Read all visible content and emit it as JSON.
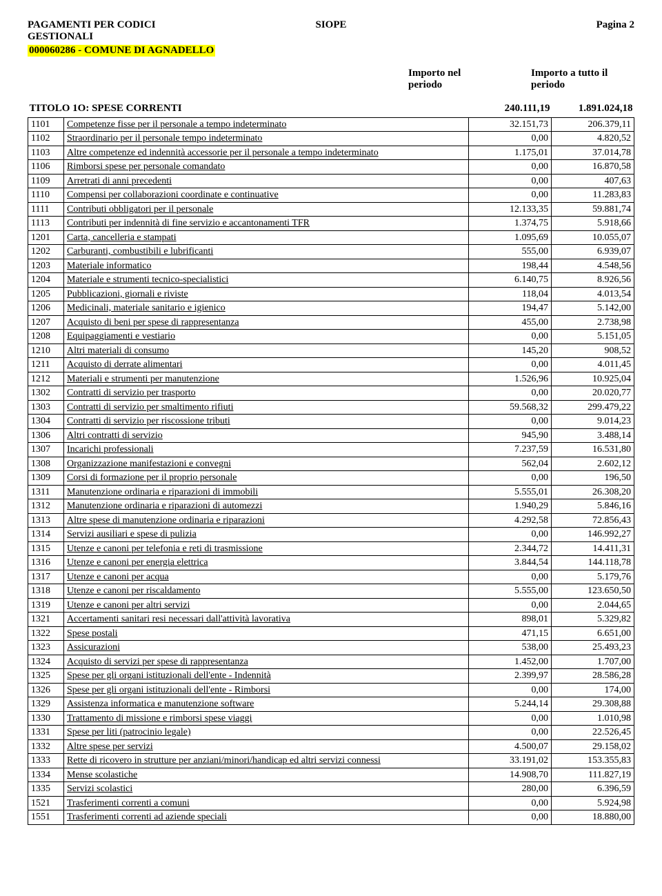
{
  "header": {
    "title_line1": "PAGAMENTI PER CODICI",
    "title_line2": "GESTIONALI",
    "center": "SIOPE",
    "page_label": "Pagina 2",
    "entity": "000060286 - COMUNE DI AGNADELLO",
    "col1_l1": "Importo nel",
    "col1_l2": "periodo",
    "col2_l1": "Importo a tutto il",
    "col2_l2": "periodo"
  },
  "section": {
    "title": "TITOLO 1O: SPESE CORRENTI",
    "v1": "240.111,19",
    "v2": "1.891.024,18"
  },
  "rows": [
    {
      "c": "1101",
      "d": "Competenze fisse per il personale a tempo indeterminato",
      "v1": "32.151,73",
      "v2": "206.379,11"
    },
    {
      "c": "1102",
      "d": "Straordinario per il personale tempo indeterminato",
      "v1": "0,00",
      "v2": "4.820,52"
    },
    {
      "c": "1103",
      "d": "Altre competenze ed indennità accessorie per il personale a tempo indeterminato",
      "v1": "1.175,01",
      "v2": "37.014,78"
    },
    {
      "c": "1106",
      "d": "Rimborsi spese per personale comandato",
      "v1": "0,00",
      "v2": "16.870,58"
    },
    {
      "c": "1109",
      "d": "Arretrati di anni precedenti",
      "v1": "0,00",
      "v2": "407,63"
    },
    {
      "c": "1110",
      "d": "Compensi per collaborazioni coordinate e continuative",
      "v1": "0,00",
      "v2": "11.283,83"
    },
    {
      "c": "1111",
      "d": "Contributi obbligatori per il personale",
      "v1": "12.133,35",
      "v2": "59.881,74"
    },
    {
      "c": "1113",
      "d": "Contributi per indennità di fine servizio e accantonamenti TFR",
      "v1": "1.374,75",
      "v2": "5.918,66"
    },
    {
      "c": "1201",
      "d": "Carta, cancelleria e stampati",
      "v1": "1.095,69",
      "v2": "10.055,07"
    },
    {
      "c": "1202",
      "d": "Carburanti, combustibili e lubrificanti",
      "v1": "555,00",
      "v2": "6.939,07"
    },
    {
      "c": "1203",
      "d": "Materiale informatico",
      "v1": "198,44",
      "v2": "4.548,56"
    },
    {
      "c": "1204",
      "d": "Materiale e strumenti tecnico-specialistici",
      "v1": "6.140,75",
      "v2": "8.926,56"
    },
    {
      "c": "1205",
      "d": "Pubblicazioni, giornali e riviste",
      "v1": "118,04",
      "v2": "4.013,54"
    },
    {
      "c": "1206",
      "d": "Medicinali, materiale sanitario e igienico",
      "v1": "194,47",
      "v2": "5.142,00"
    },
    {
      "c": "1207",
      "d": "Acquisto di beni per spese di rappresentanza",
      "v1": "455,00",
      "v2": "2.738,98"
    },
    {
      "c": "1208",
      "d": "Equipaggiamenti e vestiario",
      "v1": "0,00",
      "v2": "5.151,05"
    },
    {
      "c": "1210",
      "d": "Altri materiali di consumo",
      "v1": "145,20",
      "v2": "908,52"
    },
    {
      "c": "1211",
      "d": "Acquisto di derrate alimentari",
      "v1": "0,00",
      "v2": "4.011,45"
    },
    {
      "c": "1212",
      "d": "Materiali e strumenti per manutenzione",
      "v1": "1.526,96",
      "v2": "10.925,04"
    },
    {
      "c": "1302",
      "d": "Contratti di servizio per trasporto",
      "v1": "0,00",
      "v2": "20.020,77"
    },
    {
      "c": "1303",
      "d": "Contratti di servizio per smaltimento rifiuti",
      "v1": "59.568,32",
      "v2": "299.479,22"
    },
    {
      "c": "1304",
      "d": "Contratti di servizio per riscossione tributi",
      "v1": "0,00",
      "v2": "9.014,23"
    },
    {
      "c": "1306",
      "d": "Altri contratti di servizio",
      "v1": "945,90",
      "v2": "3.488,14"
    },
    {
      "c": "1307",
      "d": "Incarichi professionali",
      "v1": "7.237,59",
      "v2": "16.531,80"
    },
    {
      "c": "1308",
      "d": "Organizzazione manifestazioni e convegni",
      "v1": "562,04",
      "v2": "2.602,12"
    },
    {
      "c": "1309",
      "d": "Corsi di formazione per il proprio personale",
      "v1": "0,00",
      "v2": "196,50"
    },
    {
      "c": "1311",
      "d": "Manutenzione ordinaria e riparazioni di immobili",
      "v1": "5.555,01",
      "v2": "26.308,20"
    },
    {
      "c": "1312",
      "d": "Manutenzione ordinaria e riparazioni di automezzi",
      "v1": "1.940,29",
      "v2": "5.846,16"
    },
    {
      "c": "1313",
      "d": "Altre spese di manutenzione ordinaria e riparazioni",
      "v1": "4.292,58",
      "v2": "72.856,43"
    },
    {
      "c": "1314",
      "d": "Servizi ausiliari e spese di pulizia",
      "v1": "0,00",
      "v2": "146.992,27"
    },
    {
      "c": "1315",
      "d": "Utenze e canoni per telefonia e reti di trasmissione",
      "v1": "2.344,72",
      "v2": "14.411,31"
    },
    {
      "c": "1316",
      "d": "Utenze e canoni per energia elettrica",
      "v1": "3.844,54",
      "v2": "144.118,78"
    },
    {
      "c": "1317",
      "d": "Utenze e canoni per acqua",
      "v1": "0,00",
      "v2": "5.179,76"
    },
    {
      "c": "1318",
      "d": "Utenze e canoni per riscaldamento",
      "v1": "5.555,00",
      "v2": "123.650,50"
    },
    {
      "c": "1319",
      "d": "Utenze e canoni per altri servizi",
      "v1": "0,00",
      "v2": "2.044,65"
    },
    {
      "c": "1321",
      "d": "Accertamenti sanitari resi necessari dall'attività lavorativa",
      "v1": "898,01",
      "v2": "5.329,82"
    },
    {
      "c": "1322",
      "d": "Spese postali",
      "v1": "471,15",
      "v2": "6.651,00"
    },
    {
      "c": "1323",
      "d": "Assicurazioni",
      "v1": "538,00",
      "v2": "25.493,23"
    },
    {
      "c": "1324",
      "d": "Acquisto di servizi per spese di rappresentanza",
      "v1": "1.452,00",
      "v2": "1.707,00"
    },
    {
      "c": "1325",
      "d": "Spese per gli organi istituzionali dell'ente - Indennità",
      "v1": "2.399,97",
      "v2": "28.586,28"
    },
    {
      "c": "1326",
      "d": "Spese per gli organi istituzionali dell'ente - Rimborsi",
      "v1": "0,00",
      "v2": "174,00"
    },
    {
      "c": "1329",
      "d": "Assistenza informatica e manutenzione software",
      "v1": "5.244,14",
      "v2": "29.308,88"
    },
    {
      "c": "1330",
      "d": "Trattamento di missione e rimborsi spese viaggi",
      "v1": "0,00",
      "v2": "1.010,98"
    },
    {
      "c": "1331",
      "d": "Spese per liti (patrocinio legale)",
      "v1": "0,00",
      "v2": "22.526,45"
    },
    {
      "c": "1332",
      "d": "Altre spese per servizi",
      "v1": "4.500,07",
      "v2": "29.158,02"
    },
    {
      "c": "1333",
      "d": "Rette di ricovero in strutture per anziani/minori/handicap ed altri servizi connessi",
      "v1": "33.191,02",
      "v2": "153.355,83"
    },
    {
      "c": "1334",
      "d": "Mense scolastiche",
      "v1": "14.908,70",
      "v2": "111.827,19"
    },
    {
      "c": "1335",
      "d": "Servizi scolastici",
      "v1": "280,00",
      "v2": "6.396,59"
    },
    {
      "c": "1521",
      "d": "Trasferimenti correnti a comuni",
      "v1": "0,00",
      "v2": "5.924,98"
    },
    {
      "c": "1551",
      "d": "Trasferimenti correnti ad aziende speciali",
      "v1": "0,00",
      "v2": "18.880,00"
    }
  ]
}
